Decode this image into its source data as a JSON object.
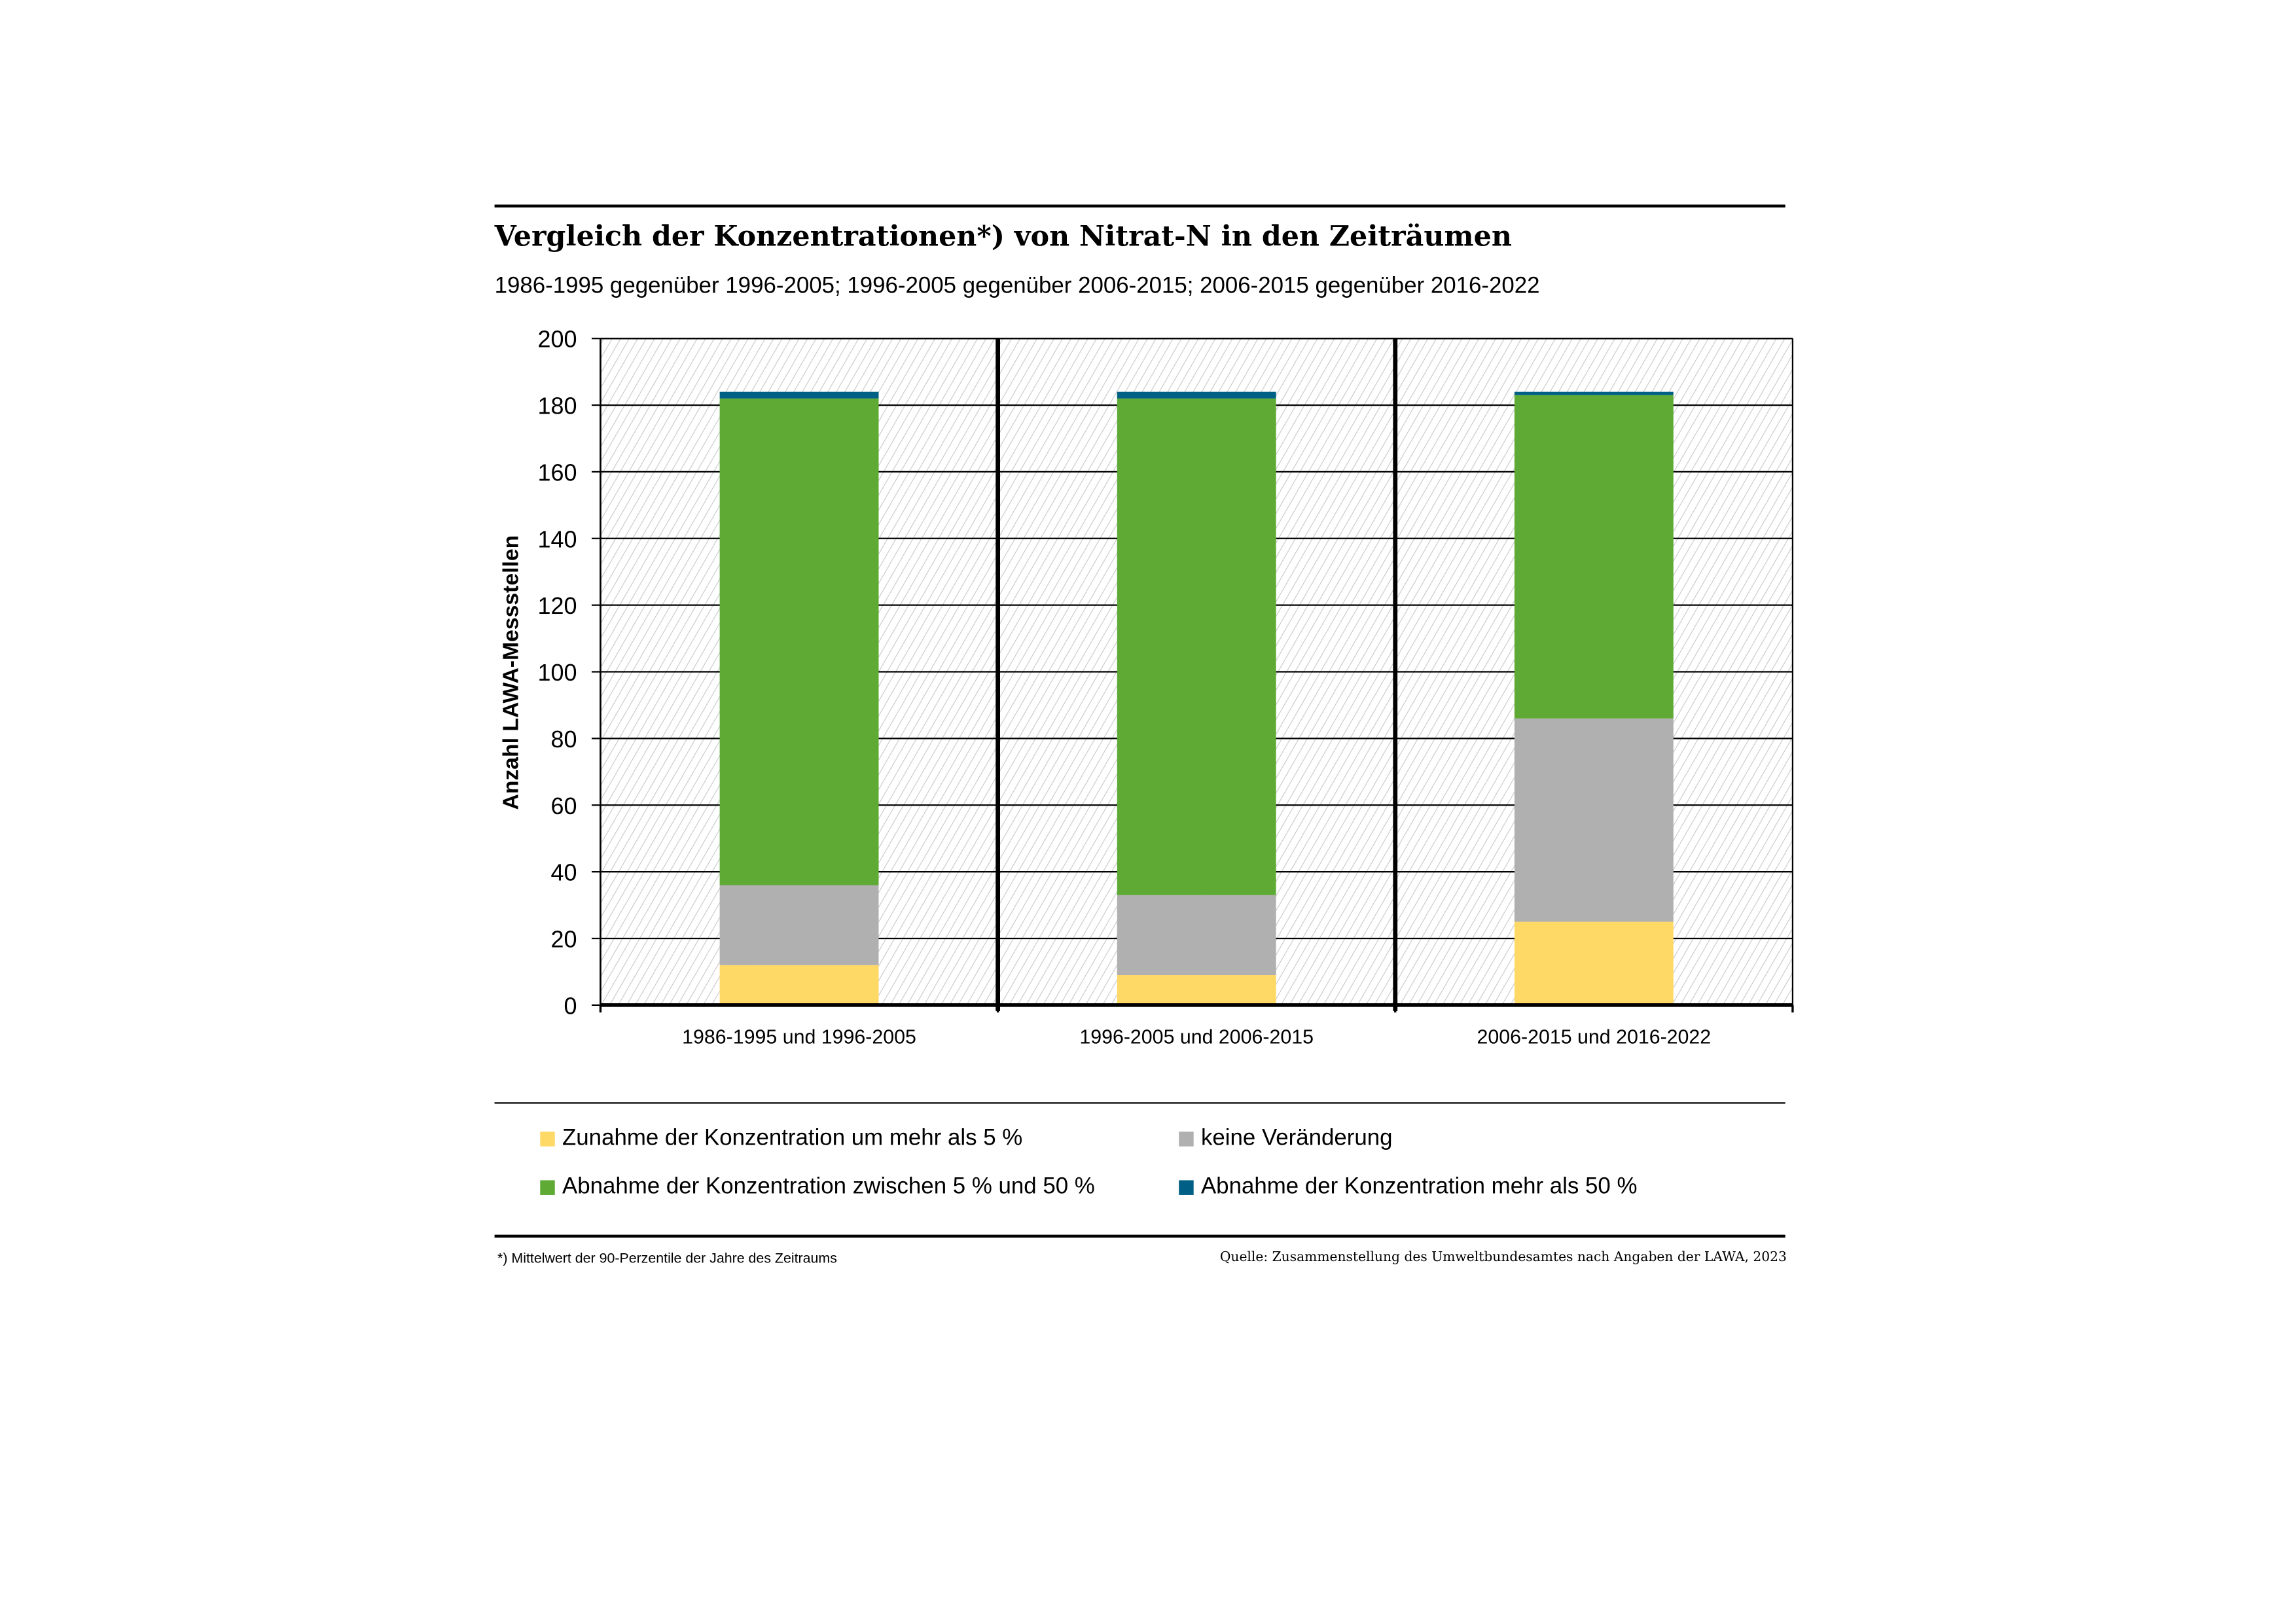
{
  "chart_data": {
    "type": "bar",
    "stacked": true,
    "title": "Vergleich der Konzentrationen*) von Nitrat-N in den Zeiträumen",
    "subtitle": "1986-1995 gegenüber 1996-2005; 1996-2005 gegenüber 2006-2015; 2006-2015 gegenüber 2016-2022",
    "xlabel": "",
    "ylabel": "Anzahl LAWA-Messstellen",
    "ylim": [
      0,
      200
    ],
    "yticks": [
      0,
      20,
      40,
      60,
      80,
      100,
      120,
      140,
      160,
      180,
      200
    ],
    "grid": true,
    "legend_position": "bottom",
    "categories": [
      "1986-1995 und 1996-2005",
      "1996-2005 und 2006-2015",
      "2006-2015 und 2016-2022"
    ],
    "series": [
      {
        "name": "Zunahme der Konzentration um mehr als 5 %",
        "color": "#FFD966",
        "values": [
          12,
          9,
          25
        ]
      },
      {
        "name": "keine Veränderung",
        "color": "#B0B0B0",
        "values": [
          24,
          24,
          61
        ]
      },
      {
        "name": "Abnahme der Konzentration zwischen 5 % und 50 %",
        "color": "#5EAA35",
        "values": [
          146,
          149,
          97
        ]
      },
      {
        "name": "Abnahme der Konzentration mehr als 50 %",
        "color": "#005F85",
        "values": [
          2,
          2,
          1
        ]
      }
    ]
  },
  "footnote": "*) Mittelwert der 90-Perzentile der Jahre des Zeitraums",
  "source": "Quelle: Zusammenstellung des Umweltbundesamtes nach Angaben der LAWA, 2023"
}
